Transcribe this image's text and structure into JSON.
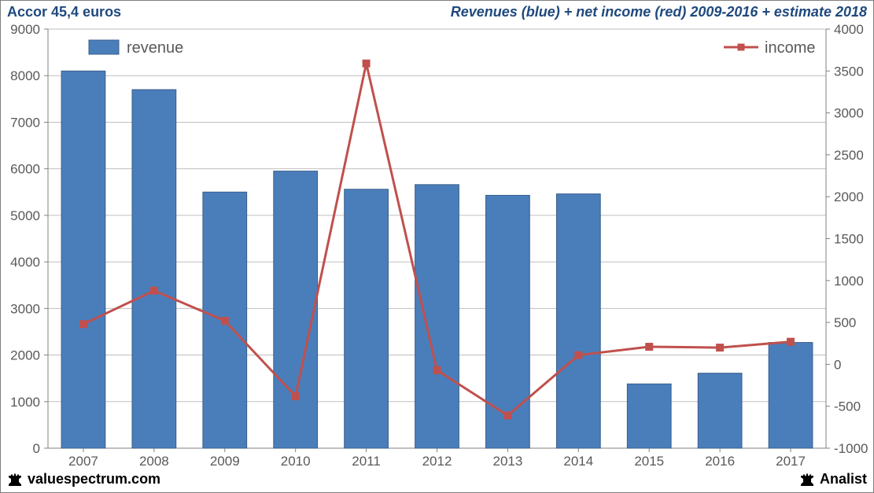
{
  "title_left": "Accor 45,4 euros",
  "title_right": "Revenues (blue) + net income (red) 2009-2016 + estimate 2018",
  "footer_left": "valuespectrum.com",
  "footer_right": "Analist",
  "chart": {
    "type": "bar+line-dual-axis",
    "categories": [
      "2007",
      "2008",
      "2009",
      "2010",
      "2011",
      "2012",
      "2013",
      "2014",
      "2015",
      "2016",
      "2017"
    ],
    "bars": {
      "label": "revenue",
      "values": [
        8100,
        7700,
        5500,
        5950,
        5560,
        5660,
        5430,
        5460,
        1380,
        1610,
        2270
      ],
      "color": "#4a7ebb",
      "border_color": "#385d8a",
      "width_ratio": 0.62
    },
    "line": {
      "label": "income",
      "values": [
        480,
        880,
        520,
        -380,
        3590,
        -70,
        -610,
        110,
        210,
        200,
        270
      ],
      "color": "#c0504d",
      "marker": "square",
      "marker_size": 9,
      "line_width": 3
    },
    "axis_left": {
      "min": 0,
      "max": 9000,
      "step": 1000
    },
    "axis_right": {
      "min": -1000,
      "max": 4000,
      "step": 500
    },
    "grid_color": "#bfbfbf",
    "axis_line_color": "#808080",
    "tick_font_size": 17,
    "tick_color": "#595959",
    "plot_bg": "#ffffff",
    "legend": {
      "revenue_pos": "top-left",
      "income_pos": "top-right",
      "font_size": 20,
      "text_color": "#595959"
    }
  }
}
